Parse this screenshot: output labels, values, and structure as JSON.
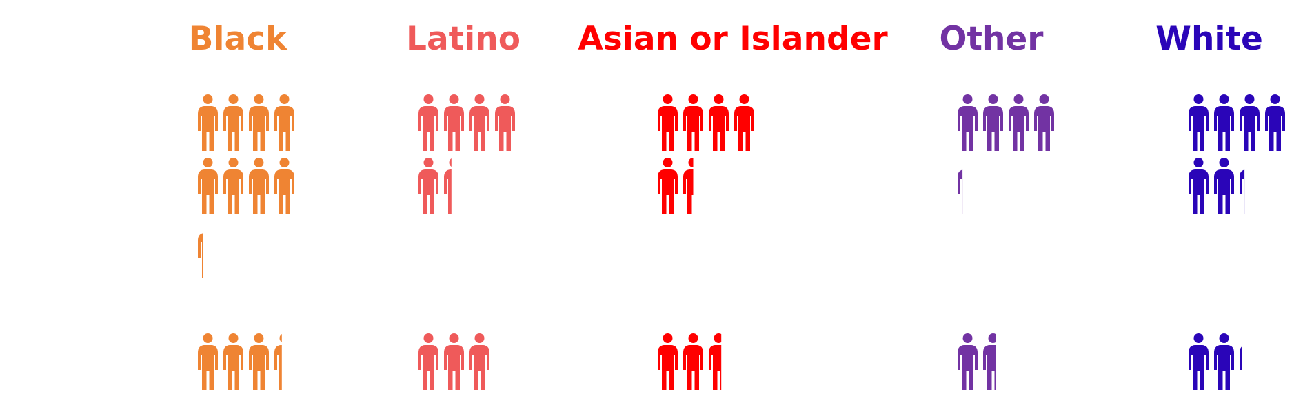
{
  "chart_data": {
    "type": "pictograph",
    "title": "",
    "xlabel": "",
    "ylabel": "",
    "categories": [
      "Black",
      "Latino",
      "Asian or Islander",
      "Other",
      "White"
    ],
    "colors": [
      "#ef8433",
      "#ef5a5a",
      "#ff0000",
      "#7233a3",
      "#2a05b8"
    ],
    "series": [
      {
        "values": [
          8.3,
          5.4,
          5.5,
          4.3,
          6.3
        ]
      },
      {
        "values": [
          3.4,
          3.0,
          2.6,
          1.6,
          2.2
        ]
      }
    ]
  }
}
